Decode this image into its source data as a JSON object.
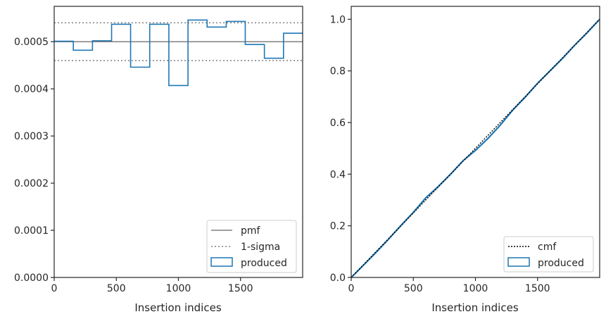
{
  "chart_data": [
    {
      "type": "step",
      "xlabel": "Insertion indices",
      "xlim": [
        0,
        2000
      ],
      "ylim": [
        0,
        0.000575
      ],
      "xticks": [
        0,
        500,
        1000,
        1500
      ],
      "xtick_labels": [
        "0",
        "500",
        "1000",
        "1500"
      ],
      "yticks": [
        0,
        0.0001,
        0.0002,
        0.0003,
        0.0004,
        0.0005
      ],
      "ytick_labels": [
        "0.0000",
        "0.0001",
        "0.0002",
        "0.0003",
        "0.0004",
        "0.0005"
      ],
      "pmf": 0.0005,
      "sigma_lower": 0.00046,
      "sigma_upper": 0.00054,
      "bin_edges": [
        0,
        154,
        308,
        462,
        615,
        769,
        923,
        1077,
        1231,
        1385,
        1538,
        1692,
        1846,
        2000
      ],
      "produced": [
        0.000501,
        0.000482,
        0.000502,
        0.000537,
        0.000446,
        0.000537,
        0.000407,
        0.000546,
        0.000531,
        0.000543,
        0.000494,
        0.000465,
        0.000518
      ],
      "legend": {
        "position": "lower right",
        "entries": [
          "pmf",
          "1-sigma",
          "produced"
        ]
      },
      "colors": {
        "pmf": "#808080",
        "sigma": "#808080",
        "produced": "#1f77b4"
      }
    },
    {
      "type": "line",
      "xlabel": "Insertion indices",
      "xlim": [
        0,
        2000
      ],
      "ylim": [
        0,
        1.05
      ],
      "xticks": [
        0,
        500,
        1000,
        1500
      ],
      "xtick_labels": [
        "0",
        "500",
        "1000",
        "1500"
      ],
      "yticks": [
        0,
        0.2,
        0.4,
        0.6,
        0.8,
        1.0
      ],
      "ytick_labels": [
        "0.0",
        "0.2",
        "0.4",
        "0.6",
        "0.8",
        "1.0"
      ],
      "cmf": {
        "x": [
          0,
          2000
        ],
        "y": [
          0,
          1.0
        ]
      },
      "produced": {
        "x": [
          0,
          100,
          200,
          300,
          400,
          500,
          600,
          700,
          800,
          900,
          1000,
          1100,
          1200,
          1300,
          1400,
          1500,
          1600,
          1700,
          1800,
          1900,
          2000
        ],
        "y": [
          0,
          0.048,
          0.097,
          0.148,
          0.201,
          0.252,
          0.308,
          0.352,
          0.4,
          0.452,
          0.492,
          0.538,
          0.59,
          0.648,
          0.698,
          0.752,
          0.8,
          0.848,
          0.9,
          0.948,
          1.0
        ]
      },
      "legend": {
        "position": "lower right",
        "entries": [
          "cmf",
          "produced"
        ]
      },
      "colors": {
        "cmf": "#000000",
        "produced": "#1f77b4"
      }
    }
  ]
}
